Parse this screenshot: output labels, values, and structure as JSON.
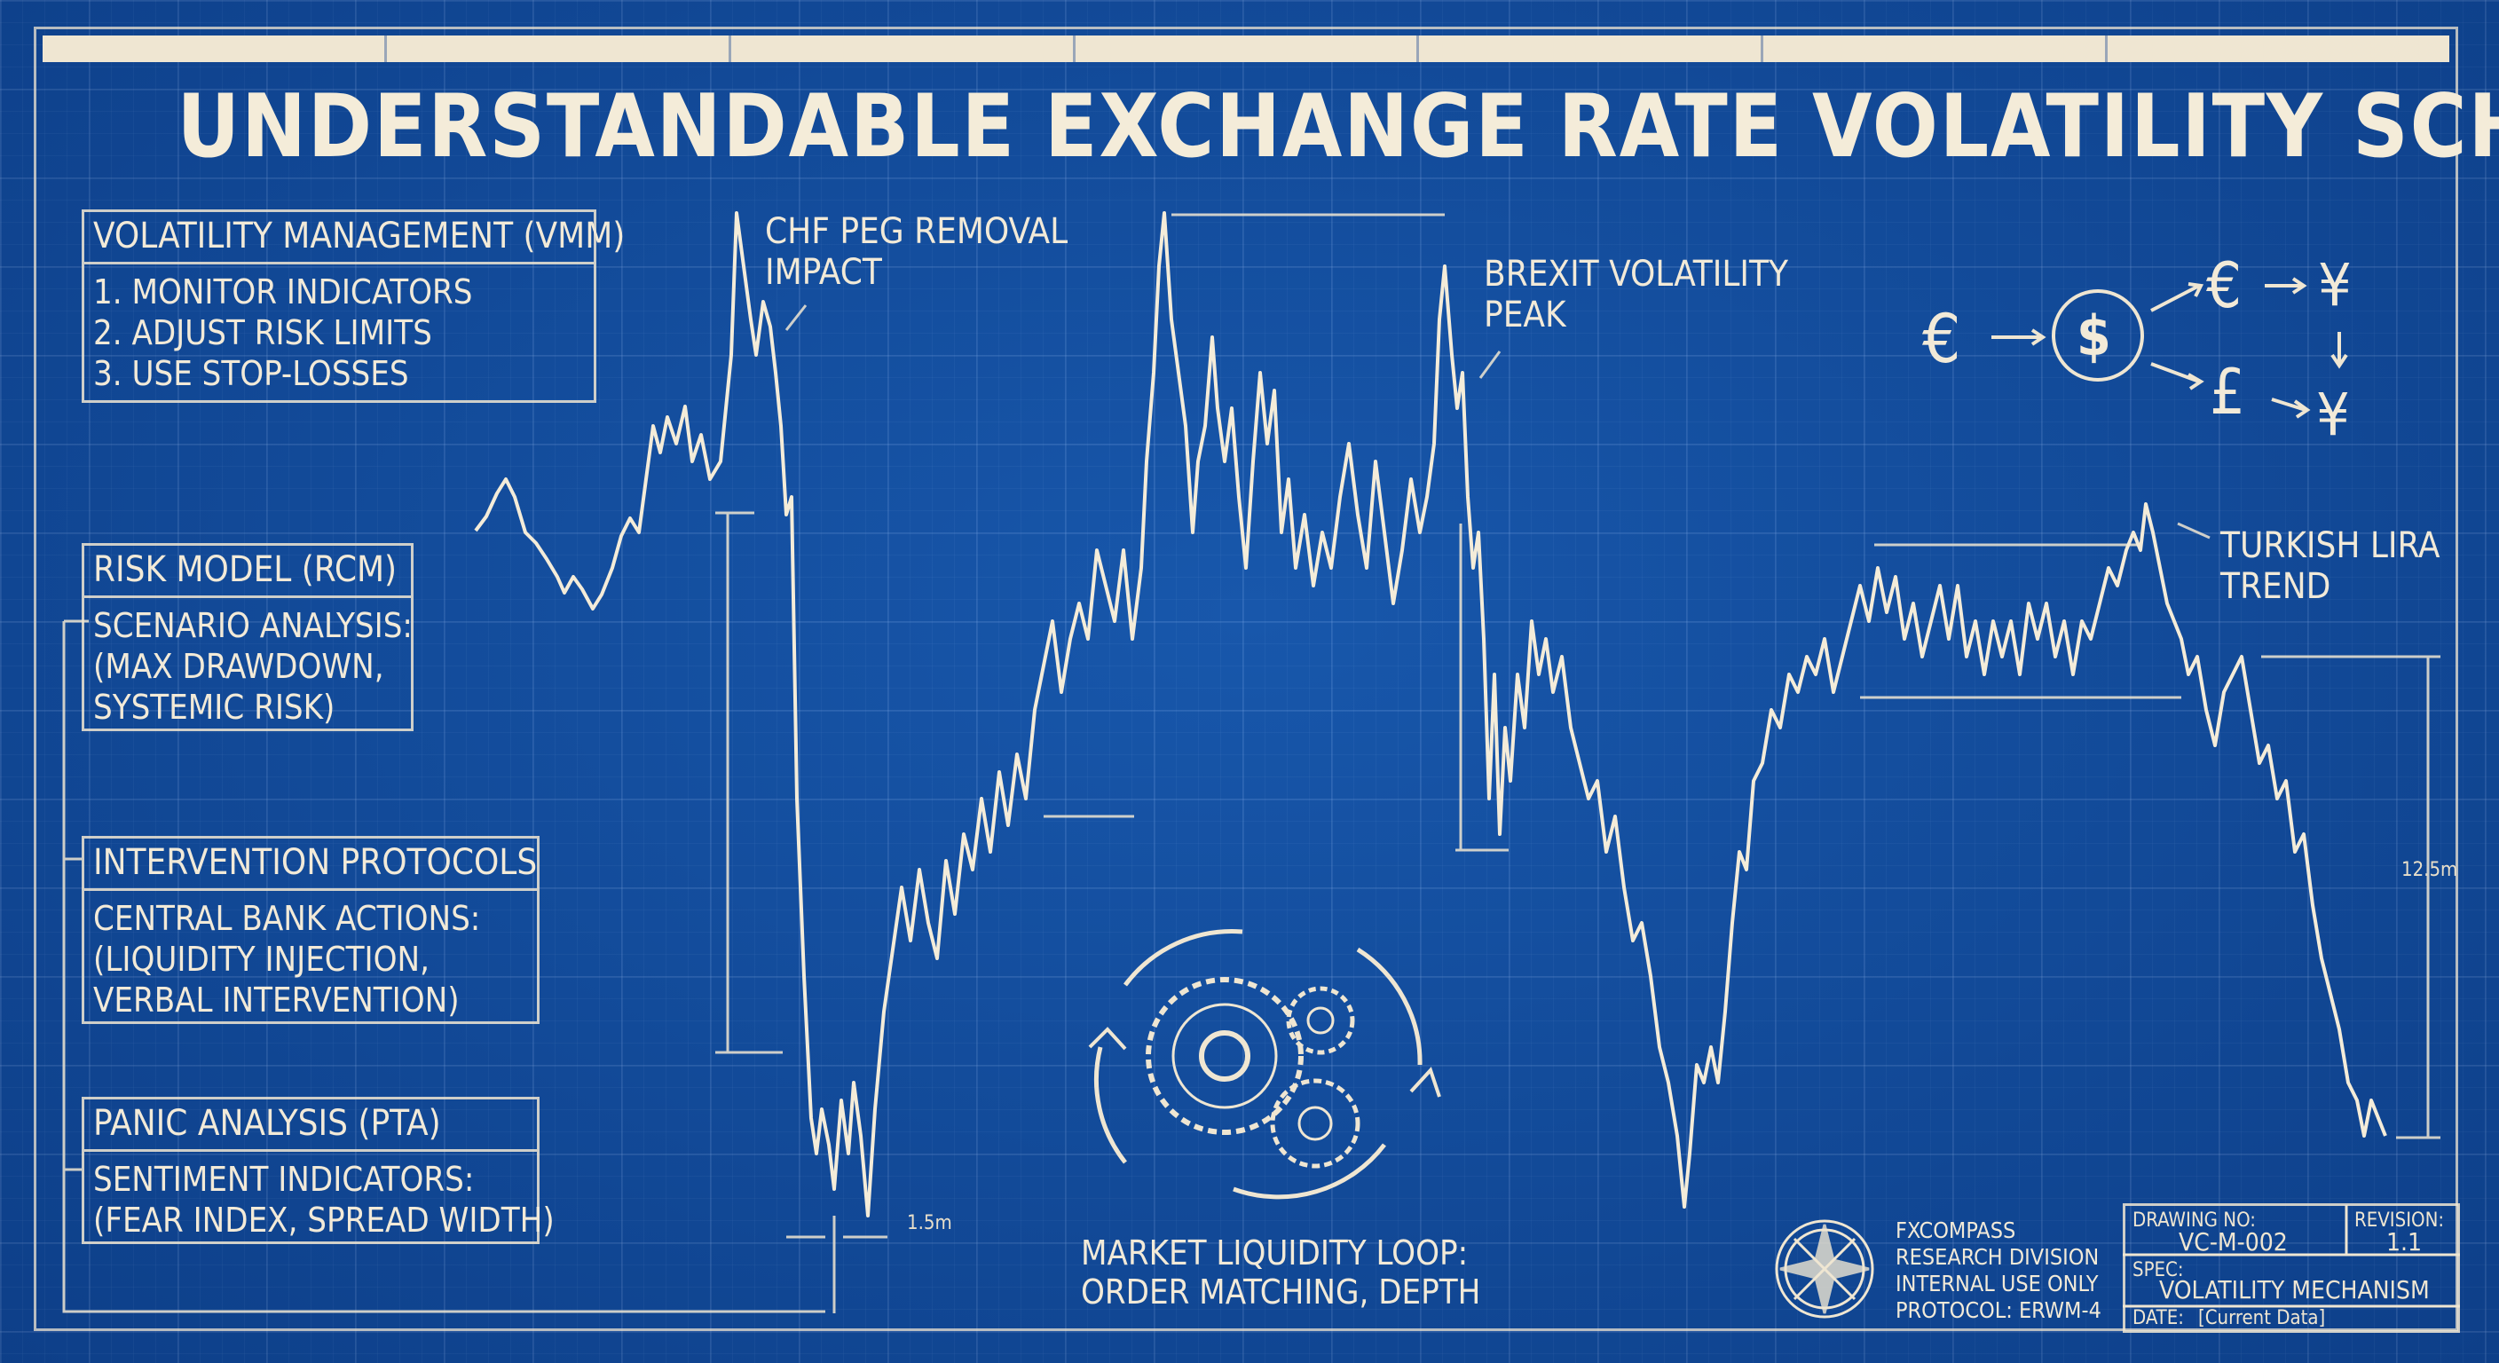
{
  "title": "UNDERSTANDABLE EXCHANGE RATE VOLATILITY SCHEMATIC",
  "vmm": {
    "heading": "VOLATILITY MANAGEMENT (VMM)",
    "items": [
      "1. MONITOR INDICATORS",
      "2. ADJUST RISK LIMITS",
      "3. USE STOP-LOSSES"
    ]
  },
  "rcm": {
    "heading": "RISK MODEL (RCM)",
    "lines": [
      "SCENARIO ANALYSIS:",
      "(MAX DRAWDOWN,",
      "SYSTEMIC RISK)"
    ]
  },
  "intervention": {
    "heading": "INTERVENTION PROTOCOLS",
    "lines": [
      "CENTRAL BANK ACTIONS:",
      "(LIQUIDITY INJECTION,",
      "VERBAL INTERVENTION)"
    ]
  },
  "pta": {
    "heading": "PANIC ANALYSIS (PTA)",
    "lines": [
      "SENTIMENT INDICATORS:",
      "(FEAR INDEX, SPREAD WIDTH)"
    ]
  },
  "annotations": {
    "chf": [
      "CHF PEG REMOVAL",
      "IMPACT"
    ],
    "brexit": [
      "BREXIT VOLATILITY",
      "PEAK"
    ],
    "lira": [
      "TURKISH LIRA",
      "TREND"
    ],
    "dim_small": "1.5m",
    "dim_large": "12.5m"
  },
  "currency_flow": {
    "euro_left": "€",
    "dollar": "$",
    "euro_right": "€",
    "pound": "£",
    "yen_top": "¥",
    "yen_bottom": "¥"
  },
  "liquidity_loop": [
    "MARKET LIQUIDITY LOOP:",
    "ORDER MATCHING, DEPTH"
  ],
  "footer_org": [
    "FXCOMPASS",
    "RESEARCH DIVISION",
    "INTERNAL USE ONLY",
    "PROTOCOL: ERWM-4"
  ],
  "title_block": {
    "drawing_label": "DRAWING NO:",
    "drawing_value": "VC-M-002",
    "revision_label": "REVISION:",
    "revision_value": "1.1",
    "spec_label": "SPEC:",
    "spec_value": "VOLATILITY MECHANISM",
    "date_label": "DATE:",
    "date_value": "[Current Data]"
  },
  "colors": {
    "background": "#0f4b9c",
    "ink": "#f2ead8"
  },
  "icons": [
    "compass-rose-icon",
    "gears-loop-icon"
  ]
}
